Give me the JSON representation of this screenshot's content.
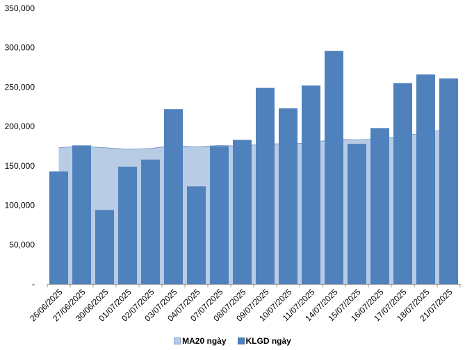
{
  "chart_data": {
    "type": "bar",
    "categories": [
      "26/06/2025",
      "27/06/2025",
      "30/06/2025",
      "01/07/2025",
      "02/07/2025",
      "03/07/2025",
      "04/07/2025",
      "07/07/2025",
      "08/07/2025",
      "09/07/2025",
      "10/07/2025",
      "11/07/2025",
      "14/07/2025",
      "15/07/2025",
      "16/07/2025",
      "17/07/2025",
      "18/07/2025",
      "21/07/2025"
    ],
    "series": [
      {
        "name": "KLGD ngày",
        "type": "bar",
        "color": "#4f81bd",
        "values": [
          143000,
          176000,
          94000,
          149000,
          158000,
          222000,
          124000,
          175000,
          183000,
          249000,
          223000,
          252000,
          296000,
          178000,
          198000,
          255000,
          266000,
          261000
        ]
      },
      {
        "name": "MA20 ngày",
        "type": "area",
        "color": "#b9cce6",
        "line_color": "#7b9cc9",
        "values": [
          173000,
          175000,
          173000,
          171000,
          172000,
          176000,
          174000,
          176000,
          175000,
          178000,
          178000,
          179000,
          184000,
          183000,
          184000,
          188000,
          192000,
          197000
        ]
      }
    ],
    "yticks": [
      "-",
      "50,000",
      "100,000",
      "150,000",
      "200,000",
      "250,000",
      "300,000",
      "350,000"
    ],
    "ylim": [
      0,
      350000
    ],
    "grid": false,
    "legend_position": "bottom-center"
  }
}
